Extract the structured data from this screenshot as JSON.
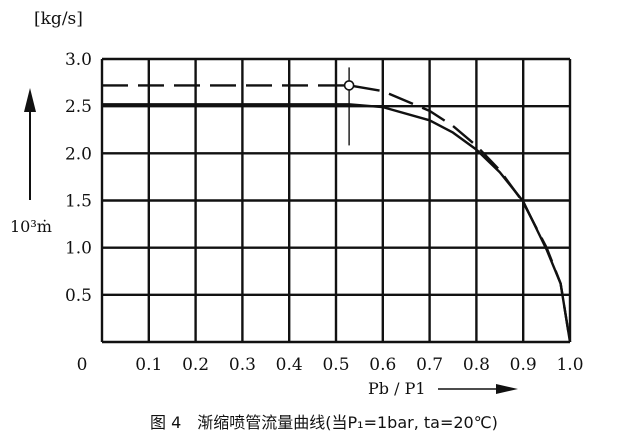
{
  "chart_data": {
    "type": "line",
    "title": "图 4　渐缩喷管流量曲线(当P₁=1bar, ta=20℃)",
    "ylabel": "[kg/s]",
    "ylabel_side": "10³ṁ",
    "xlabel": "Pb / P1",
    "xlim": [
      0,
      1.0
    ],
    "ylim": [
      0,
      3.0
    ],
    "x_ticks": [
      "0",
      "0.1",
      "0.2",
      "0.3",
      "0.4",
      "0.5",
      "0.6",
      "0.7",
      "0.8",
      "0.9",
      "1.0"
    ],
    "y_ticks": [
      "0.5",
      "1.0",
      "1.5",
      "2.0",
      "2.5",
      "3.0"
    ],
    "grid": true,
    "series": [
      {
        "style": "solid",
        "x": [
          0,
          0.1,
          0.2,
          0.3,
          0.4,
          0.5,
          0.528,
          0.6,
          0.7,
          0.75,
          0.8,
          0.85,
          0.9,
          0.95,
          0.98,
          1.0
        ],
        "y": [
          2.52,
          2.52,
          2.52,
          2.52,
          2.52,
          2.52,
          2.52,
          2.49,
          2.35,
          2.22,
          2.04,
          1.8,
          1.49,
          0.98,
          0.62,
          0
        ]
      },
      {
        "style": "dashed",
        "x": [
          0,
          0.1,
          0.2,
          0.3,
          0.4,
          0.5,
          0.528,
          0.6,
          0.7,
          0.75,
          0.8,
          0.85,
          0.9,
          0.95,
          0.98,
          1.0
        ],
        "y": [
          2.72,
          2.72,
          2.72,
          2.72,
          2.72,
          2.72,
          2.72,
          2.66,
          2.45,
          2.29,
          2.08,
          1.82,
          1.48,
          1.0,
          0.62,
          0
        ]
      }
    ],
    "annotations": [
      {
        "type": "critical-point",
        "x": 0.528,
        "y": 2.72
      }
    ]
  }
}
